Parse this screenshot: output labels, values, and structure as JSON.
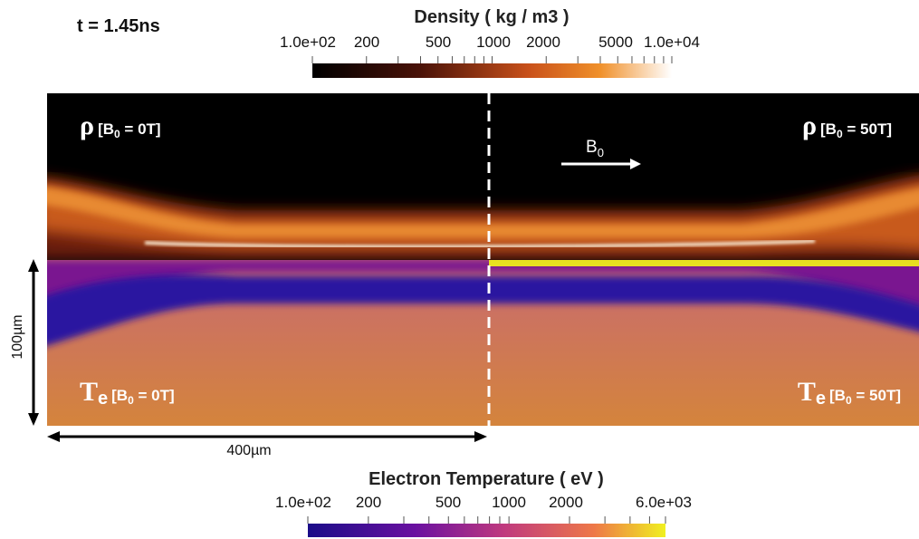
{
  "time_label": "t = 1.45ns",
  "density_colorbar": {
    "title": "Density ( kg / m3 )",
    "tick_labels": [
      "1.0e+02",
      "200",
      "500",
      "1000",
      "2000",
      "5000",
      "1.0e+04"
    ]
  },
  "temperature_colorbar": {
    "title": "Electron Temperature ( eV )",
    "tick_labels": [
      "1.0e+02",
      "200",
      "500",
      "1000",
      "2000",
      "6.0e+03"
    ]
  },
  "panels": [
    {
      "symbol": "ρ",
      "symbol_sub": "",
      "prefix": "[B",
      "sub": "0",
      "suffix": " = 0T]"
    },
    {
      "symbol": "ρ",
      "symbol_sub": "",
      "prefix": "[B",
      "sub": "0",
      "suffix": " = 50T]"
    },
    {
      "symbol": "T",
      "symbol_sub": "e",
      "prefix": "[B",
      "sub": "0",
      "suffix": " = 0T]"
    },
    {
      "symbol": "T",
      "symbol_sub": "e",
      "prefix": "[B",
      "sub": "0",
      "suffix": " = 50T]"
    }
  ],
  "field_arrow": {
    "label": "B",
    "sub": "0"
  },
  "scale_bars": {
    "vertical": "100µm",
    "horizontal": "400µm"
  }
}
